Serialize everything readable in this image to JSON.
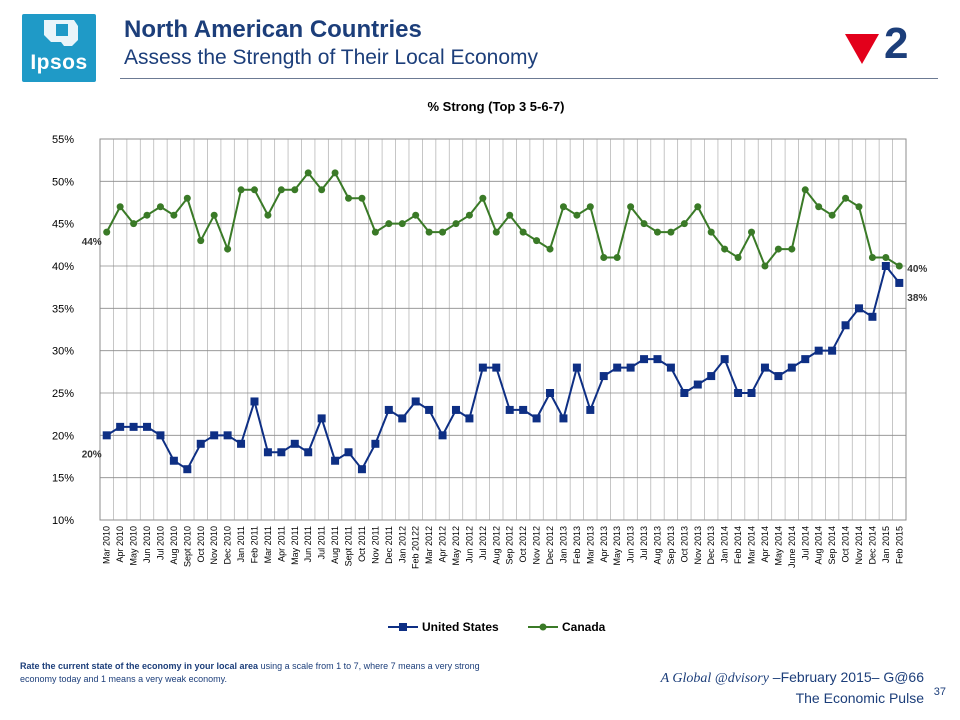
{
  "logo": {
    "text": "Ipsos"
  },
  "header": {
    "title": "North American Countries",
    "subtitle": "Assess the Strength of Their Local Economy",
    "rank": "2",
    "trend": "down",
    "trend_color": "#e3001b"
  },
  "footnote": {
    "bold": "Rate the current state of the economy in your local area",
    "rest": " using a scale from 1 to 7, where 7 means a very strong economy today and 1 means a very weak economy."
  },
  "footer": {
    "brand_italic": "A Global @dvisory",
    "brand_rest": " –February 2015– G@66",
    "sub": "The Economic Pulse",
    "page": "37"
  },
  "chart_data": {
    "type": "line",
    "title": "% Strong  (Top 3 5-6-7)",
    "ylim": [
      10,
      55
    ],
    "yticks": [
      10,
      15,
      20,
      25,
      30,
      35,
      40,
      45,
      50,
      55
    ],
    "ytick_labels": [
      "10%",
      "15%",
      "20%",
      "25%",
      "30%",
      "35%",
      "40%",
      "45%",
      "50%",
      "55%"
    ],
    "grid": "vertical and horizontal",
    "legend": "bottom",
    "categories": [
      "Mar 2010",
      "Apr 2010",
      "May 2010",
      "Jun 2010",
      "Jul 2010",
      "Aug 2010",
      "Sept 2010",
      "Oct 2010",
      "Nov 2010",
      "Dec 2010",
      "Jan 2011",
      "Feb 2011",
      "Mar 2011",
      "Apr 2011",
      "May 2011",
      "Jun 2011",
      "Jul 2011",
      "Aug 2011",
      "Sept 2011",
      "Oct 2011",
      "Nov 2011",
      "Dec 2011",
      "Jan 2012",
      "Feb 20122",
      "Mar 2012",
      "Apr 2012",
      "May 2012",
      "Jun 2012",
      "Jul 2012",
      "Aug 2012",
      "Sep 2012",
      "Oct 2012",
      "Nov 2012",
      "Dec 2012",
      "Jan 2013",
      "Feb 2013",
      "Mar 2013",
      "Apr 2013",
      "May 2013",
      "Jun 2013",
      "Jul 2013",
      "Aug 2013",
      "Sep 2013",
      "Oct 2013",
      "Nov 2013",
      "Dec 2013",
      "Jan 2014",
      "Feb 2014",
      "Mar 2014",
      "Apr 2014",
      "May 2014",
      "June 2014",
      "Jul 2014",
      "Aug 2014",
      "Sep 2014",
      "Oct 2014",
      "Nov 2014",
      "Dec 2014",
      "Jan 2015",
      "Feb 2015"
    ],
    "series": [
      {
        "name": "United States",
        "color": "#0e2f84",
        "marker": "square",
        "values": [
          20,
          21,
          21,
          21,
          20,
          17,
          16,
          19,
          20,
          20,
          19,
          24,
          18,
          18,
          19,
          18,
          22,
          17,
          18,
          16,
          19,
          23,
          22,
          24,
          23,
          20,
          23,
          22,
          28,
          28,
          23,
          23,
          22,
          25,
          22,
          28,
          23,
          27,
          28,
          28,
          29,
          29,
          28,
          25,
          26,
          27,
          29,
          25,
          25,
          28,
          27,
          28,
          29,
          30,
          30,
          33,
          35,
          34,
          40,
          38
        ],
        "labels": [
          {
            "index": 0,
            "text": "20%"
          },
          {
            "index": 59,
            "text": "38%"
          }
        ]
      },
      {
        "name": "Canada",
        "color": "#3a7a27",
        "marker": "circle",
        "values": [
          44,
          47,
          45,
          46,
          47,
          46,
          48,
          43,
          46,
          42,
          49,
          49,
          46,
          49,
          49,
          51,
          49,
          51,
          48,
          48,
          44,
          45,
          45,
          46,
          44,
          44,
          45,
          46,
          48,
          44,
          46,
          44,
          43,
          42,
          47,
          46,
          47,
          41,
          41,
          47,
          45,
          44,
          44,
          45,
          47,
          44,
          42,
          41,
          44,
          40,
          42,
          42,
          49,
          47,
          46,
          48,
          47,
          41,
          41,
          40
        ],
        "labels": [
          {
            "index": 0,
            "text": "44%"
          },
          {
            "index": 59,
            "text": "40%"
          }
        ]
      }
    ]
  }
}
